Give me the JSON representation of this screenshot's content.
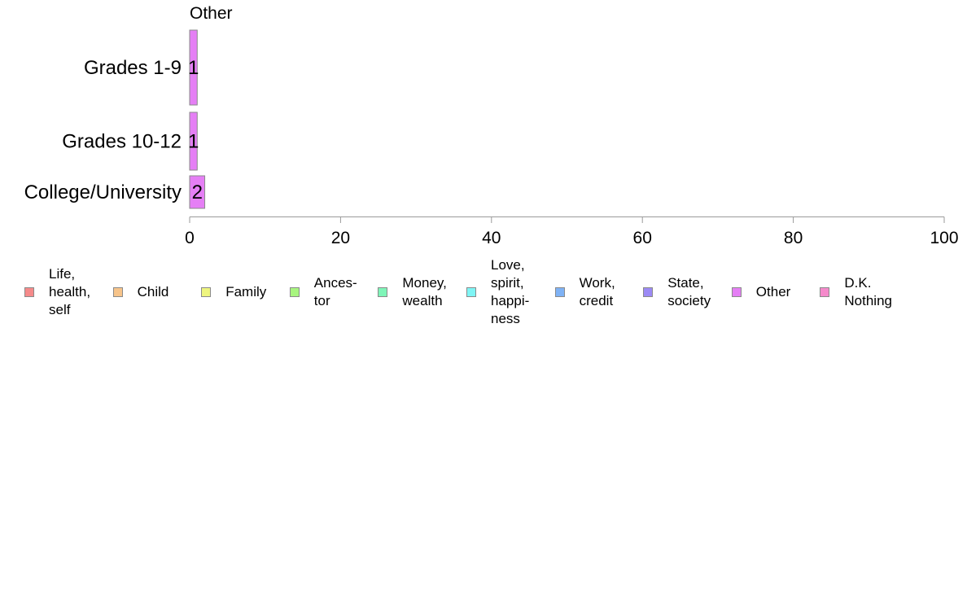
{
  "chart_data": {
    "type": "bar",
    "orientation": "horizontal",
    "title": "Other",
    "categories": [
      "Grades 1-9",
      "Grades 10-12",
      "College/University"
    ],
    "series": [
      {
        "name": "Other",
        "values": [
          1,
          1,
          2
        ],
        "labels": [
          "1",
          "1",
          "2"
        ],
        "color": "#e57ff5"
      }
    ],
    "xlim": [
      0,
      100
    ],
    "xticks": [
      0,
      20,
      40,
      60,
      80,
      100
    ],
    "xlabel": "",
    "ylabel": "",
    "grid": false,
    "legend_position": "bottom"
  },
  "legend": [
    {
      "label": "Life,\nhealth,\nself",
      "color": "#f58a8a"
    },
    {
      "label": "Child",
      "color": "#f7c48a"
    },
    {
      "label": "Family",
      "color": "#eef57f"
    },
    {
      "label": "Ances-\ntor",
      "color": "#a8f57f"
    },
    {
      "label": "Money,\nwealth",
      "color": "#7ff5b8"
    },
    {
      "label": "Love,\nspirit,\nhappi-\nness",
      "color": "#7ff5f5"
    },
    {
      "label": "Work,\ncredit",
      "color": "#7fb2f5"
    },
    {
      "label": "State,\nsociety",
      "color": "#9c8af5"
    },
    {
      "label": "Other",
      "color": "#e57ff5"
    },
    {
      "label": "D.K.\nNothing",
      "color": "#f58acb"
    }
  ]
}
